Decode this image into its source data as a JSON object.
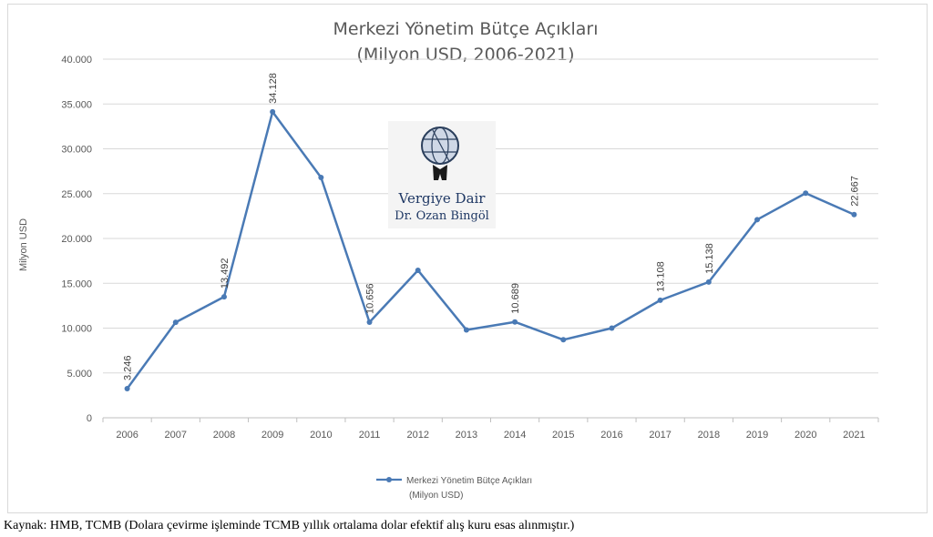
{
  "chart_data": {
    "type": "line",
    "title": "Merkezi Yönetim Bütçe Açıkları",
    "subtitle": "(Milyon USD, 2006-2021)",
    "xlabel": "",
    "ylabel": "Milyon USD",
    "ylim": [
      0,
      40000
    ],
    "yticks": [
      0,
      5000,
      10000,
      15000,
      20000,
      25000,
      30000,
      35000,
      40000
    ],
    "ytick_labels": [
      "0",
      "5.000",
      "10.000",
      "15.000",
      "20.000",
      "25.000",
      "30.000",
      "35.000",
      "40.000"
    ],
    "categories": [
      "2006",
      "2007",
      "2008",
      "2009",
      "2010",
      "2011",
      "2012",
      "2013",
      "2014",
      "2015",
      "2016",
      "2017",
      "2018",
      "2019",
      "2020",
      "2021"
    ],
    "series": [
      {
        "name": "Merkezi Yönetim Bütçe Açıkları (Milyon USD)",
        "color": "#4a7ab5",
        "values": [
          3246,
          10650,
          13492,
          34128,
          26800,
          10656,
          16450,
          9800,
          10689,
          8700,
          10000,
          13108,
          15138,
          22100,
          25050,
          22667
        ],
        "data_labels": [
          {
            "index": 0,
            "text": "3.246"
          },
          {
            "index": 2,
            "text": "13.492"
          },
          {
            "index": 3,
            "text": "34.128"
          },
          {
            "index": 5,
            "text": "10.656"
          },
          {
            "index": 8,
            "text": "10.689"
          },
          {
            "index": 11,
            "text": "13.108"
          },
          {
            "index": 12,
            "text": "15.138"
          },
          {
            "index": 15,
            "text": "22.667"
          }
        ]
      }
    ],
    "grid": true,
    "legend_position": "bottom",
    "legend": {
      "line1": "Merkezi Yönetim Bütçe Açıkları",
      "line2": "(Milyon USD)"
    }
  },
  "watermark": {
    "line1": "Vergiye Dair",
    "line2": "Dr. Ozan Bingöl",
    "icon": "atlas-globe-icon"
  },
  "caption": "Kaynak: HMB, TCMB (Dolara çevirme işleminde TCMB yıllık ortalama dolar efektif alış kuru esas alınmıştır.)"
}
